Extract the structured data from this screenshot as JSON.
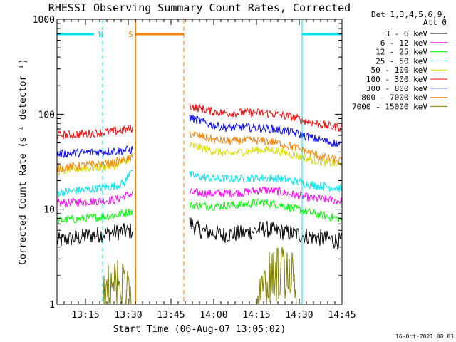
{
  "chart_data": {
    "type": "line",
    "title": "RHESSI Observing Summary Count Rates, Corrected",
    "xlabel": "Start Time (06-Aug-07 13:05:02)",
    "ylabel": "Corrected Count Rate (s⁻¹ detector⁻¹)",
    "yscale": "log",
    "ylim": [
      1,
      1000
    ],
    "xlim_minutes": [
      0,
      100
    ],
    "x_ticks": [
      {
        "label": "13:15",
        "minute": 10
      },
      {
        "label": "13:30",
        "minute": 25
      },
      {
        "label": "13:45",
        "minute": 40
      },
      {
        "label": "14:00",
        "minute": 55
      },
      {
        "label": "14:15",
        "minute": 70
      },
      {
        "label": "14:30",
        "minute": 85
      },
      {
        "label": "14:45",
        "minute": 100
      }
    ],
    "y_ticks": [
      {
        "label": "1",
        "value": 1
      },
      {
        "label": "10",
        "value": 10
      },
      {
        "label": "100",
        "value": 100
      },
      {
        "label": "1000",
        "value": 1000
      }
    ],
    "legend_header": [
      "Det 1,3,4,5,6,9,",
      "Att 0"
    ],
    "timestamp": "16-Oct-2021 08:03",
    "markers": [
      {
        "label": "N",
        "color": "#00e5ee",
        "bar_minutes": [
          0,
          16
        ],
        "end_minute": 16,
        "style": "dashed"
      },
      {
        "label": "",
        "color": "#00e5ee",
        "bar_minutes": [
          86,
          100
        ],
        "end_minute": 100,
        "style": "dashed"
      },
      {
        "label": "S",
        "color": "#ff8000",
        "bar_minutes": [
          27.5,
          44.5
        ],
        "end_minute": 44.5,
        "style": "dashed"
      }
    ],
    "vlines": [
      {
        "minute": 0,
        "color": "#00e5ee",
        "style": "solid"
      },
      {
        "minute": 86,
        "color": "#00e5ee",
        "style": "solid"
      },
      {
        "minute": 27.5,
        "color": "#ff8000",
        "style": "solid"
      }
    ],
    "segments": [
      [
        0,
        26.5
      ],
      [
        46.5,
        100
      ]
    ],
    "series": [
      {
        "name": "3 - 6 keV",
        "color": "#000000",
        "anchors": [
          [
            0,
            4.6
          ],
          [
            10,
            5.2
          ],
          [
            20,
            5.7
          ],
          [
            26,
            5.9
          ],
          [
            46.5,
            7.2
          ],
          [
            50,
            6.0
          ],
          [
            58,
            5.4
          ],
          [
            66,
            5.6
          ],
          [
            72,
            6.2
          ],
          [
            76,
            6.0
          ],
          [
            82,
            5.6
          ],
          [
            88,
            5.2
          ],
          [
            94,
            4.9
          ],
          [
            100,
            4.6
          ]
        ]
      },
      {
        "name": "6 - 12 keV",
        "color": "#ff00ff",
        "anchors": [
          [
            0,
            11.5
          ],
          [
            10,
            12
          ],
          [
            20,
            12.5
          ],
          [
            26,
            14.5
          ],
          [
            46.5,
            15
          ],
          [
            55,
            14.6
          ],
          [
            65,
            15
          ],
          [
            72,
            16
          ],
          [
            78,
            15.4
          ],
          [
            84,
            14
          ],
          [
            90,
            13
          ],
          [
            100,
            12.2
          ]
        ]
      },
      {
        "name": "12 - 25 keV",
        "color": "#00ff00",
        "anchors": [
          [
            0,
            7.6
          ],
          [
            10,
            8
          ],
          [
            20,
            8.6
          ],
          [
            26,
            9.5
          ],
          [
            46.5,
            11
          ],
          [
            55,
            10.8
          ],
          [
            65,
            11.2
          ],
          [
            72,
            11.8
          ],
          [
            78,
            11.2
          ],
          [
            84,
            10
          ],
          [
            90,
            9
          ],
          [
            100,
            7.8
          ]
        ]
      },
      {
        "name": "25 - 50 keV",
        "color": "#00e5ee",
        "anchors": [
          [
            0,
            15
          ],
          [
            10,
            16
          ],
          [
            20,
            17.5
          ],
          [
            24,
            19
          ],
          [
            26,
            27
          ],
          [
            46.5,
            23
          ],
          [
            55,
            21
          ],
          [
            65,
            21
          ],
          [
            72,
            21.5
          ],
          [
            78,
            21
          ],
          [
            84,
            19.5
          ],
          [
            90,
            18
          ],
          [
            100,
            16.5
          ]
        ]
      },
      {
        "name": "50 - 100 keV",
        "color": "#dcdc00",
        "anchors": [
          [
            0,
            25
          ],
          [
            10,
            27
          ],
          [
            20,
            28.5
          ],
          [
            24,
            32
          ],
          [
            26,
            36
          ],
          [
            46.5,
            47
          ],
          [
            55,
            41
          ],
          [
            60,
            38
          ],
          [
            65,
            40
          ],
          [
            70,
            42
          ],
          [
            76,
            42
          ],
          [
            82,
            38
          ],
          [
            88,
            34
          ],
          [
            94,
            31
          ],
          [
            100,
            29.5
          ]
        ]
      },
      {
        "name": "100 - 300 keV",
        "color": "#ff0000",
        "anchors": [
          [
            0,
            60
          ],
          [
            10,
            62
          ],
          [
            20,
            66
          ],
          [
            26,
            70
          ],
          [
            46.5,
            122
          ],
          [
            55,
            106
          ],
          [
            60,
            103
          ],
          [
            65,
            104
          ],
          [
            70,
            104
          ],
          [
            76,
            101
          ],
          [
            82,
            94
          ],
          [
            88,
            84
          ],
          [
            94,
            76
          ],
          [
            100,
            72
          ]
        ]
      },
      {
        "name": "300 - 800 keV",
        "color": "#0000ff",
        "anchors": [
          [
            0,
            38
          ],
          [
            10,
            39.5
          ],
          [
            20,
            41
          ],
          [
            26,
            42
          ],
          [
            46.5,
            92
          ],
          [
            55,
            76
          ],
          [
            60,
            72
          ],
          [
            65,
            73
          ],
          [
            70,
            72
          ],
          [
            76,
            70
          ],
          [
            82,
            65
          ],
          [
            88,
            58
          ],
          [
            94,
            52
          ],
          [
            100,
            48
          ]
        ]
      },
      {
        "name": "800 - 7000 keV",
        "color": "#ff8000",
        "anchors": [
          [
            0,
            27
          ],
          [
            10,
            29
          ],
          [
            20,
            31
          ],
          [
            26,
            34
          ],
          [
            46.5,
            63
          ],
          [
            55,
            54
          ],
          [
            60,
            52
          ],
          [
            65,
            53
          ],
          [
            70,
            53
          ],
          [
            76,
            51
          ],
          [
            82,
            46
          ],
          [
            88,
            40
          ],
          [
            94,
            35
          ],
          [
            100,
            32
          ]
        ]
      },
      {
        "name": "7000 - 15000 keV",
        "color": "#808000",
        "anchors": [
          [
            0,
            1
          ],
          [
            16,
            1
          ],
          [
            17,
            1.6
          ],
          [
            21,
            1.9
          ],
          [
            25,
            1.6
          ],
          [
            26,
            1
          ],
          [
            46.5,
            1
          ],
          [
            70,
            1
          ],
          [
            71,
            2.2
          ],
          [
            75,
            2.4
          ],
          [
            79,
            2.6
          ],
          [
            81,
            3
          ],
          [
            83,
            2.3
          ],
          [
            84,
            1
          ],
          [
            100,
            1
          ]
        ]
      }
    ]
  }
}
